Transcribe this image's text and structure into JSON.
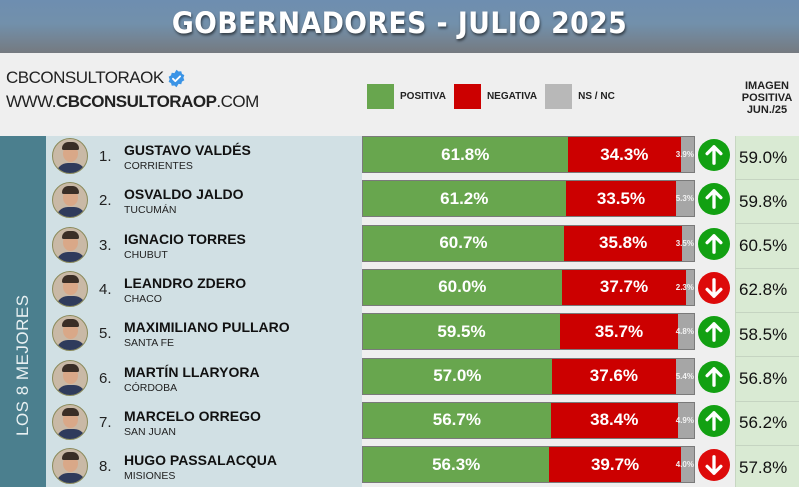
{
  "header": {
    "title": "GOBERNADORES - JULIO 2025"
  },
  "brand": {
    "handle": "CBCONSULTORAOK",
    "verified_icon": "verified-badge-icon",
    "url_prefix": "WWW.",
    "url_bold": "CBCONSULTORAOP",
    "url_suffix": ".COM"
  },
  "legend": {
    "positive": {
      "label": "POSITIVA",
      "color": "#68a64e"
    },
    "negative": {
      "label": "NEGATIVA",
      "color": "#cc0000"
    },
    "nsnc": {
      "label": "NS / NC",
      "color": "#b8b8b8"
    }
  },
  "prev_column": {
    "line1": "IMAGEN",
    "line2": "POSITIVA",
    "line3": "JUN./25"
  },
  "sidebar": {
    "label": "LOS 8 MEJORES"
  },
  "colors": {
    "trend_up": "#12a012",
    "trend_down": "#dd0a0a"
  },
  "chart_data": {
    "type": "bar",
    "title": "GOBERNADORES - JULIO 2025",
    "subtitle": "LOS 8 MEJORES",
    "stacked": true,
    "orientation": "horizontal",
    "categories": [
      "GUSTAVO VALDÉS",
      "OSVALDO JALDO",
      "IGNACIO TORRES",
      "LEANDRO ZDERO",
      "MAXIMILIANO PULLARO",
      "MARTÍN LLARYORA",
      "MARCELO ORREGO",
      "HUGO PASSALACQUA"
    ],
    "series": [
      {
        "name": "POSITIVA",
        "values": [
          61.8,
          61.2,
          60.7,
          60.0,
          59.5,
          57.0,
          56.7,
          56.3
        ]
      },
      {
        "name": "NEGATIVA",
        "values": [
          34.3,
          33.5,
          35.8,
          37.7,
          35.7,
          37.6,
          38.4,
          39.7
        ]
      },
      {
        "name": "NS / NC",
        "values": [
          3.9,
          5.3,
          3.5,
          2.3,
          4.8,
          5.4,
          4.9,
          4.0
        ]
      },
      {
        "name": "IMAGEN POSITIVA JUN./25",
        "values": [
          59.0,
          59.8,
          60.5,
          62.8,
          58.5,
          56.8,
          56.2,
          57.8
        ]
      }
    ],
    "xlabel": "",
    "ylabel": "",
    "xlim": [
      0,
      100
    ],
    "legend_position": "top"
  },
  "rows": [
    {
      "rank": "1.",
      "name": "GUSTAVO VALDÉS",
      "province": "CORRIENTES",
      "pos": "61.8%",
      "neg": "34.3%",
      "ns": "3.9%",
      "pos_w": 61.8,
      "neg_w": 34.3,
      "ns_w": 3.9,
      "trend": "up",
      "prev": "59.0%"
    },
    {
      "rank": "2.",
      "name": "OSVALDO JALDO",
      "province": "TUCUMÁN",
      "pos": "61.2%",
      "neg": "33.5%",
      "ns": "5.3%",
      "pos_w": 61.2,
      "neg_w": 33.5,
      "ns_w": 5.3,
      "trend": "up",
      "prev": "59.8%"
    },
    {
      "rank": "3.",
      "name": "IGNACIO TORRES",
      "province": "CHUBUT",
      "pos": "60.7%",
      "neg": "35.8%",
      "ns": "3.5%",
      "pos_w": 60.7,
      "neg_w": 35.8,
      "ns_w": 3.5,
      "trend": "up",
      "prev": "60.5%"
    },
    {
      "rank": "4.",
      "name": "LEANDRO ZDERO",
      "province": "CHACO",
      "pos": "60.0%",
      "neg": "37.7%",
      "ns": "2.3%",
      "pos_w": 60.0,
      "neg_w": 37.7,
      "ns_w": 2.3,
      "trend": "down",
      "prev": "62.8%"
    },
    {
      "rank": "5.",
      "name": "MAXIMILIANO PULLARO",
      "province": "SANTA FE",
      "pos": "59.5%",
      "neg": "35.7%",
      "ns": "4.8%",
      "pos_w": 59.5,
      "neg_w": 35.7,
      "ns_w": 4.8,
      "trend": "up",
      "prev": "58.5%"
    },
    {
      "rank": "6.",
      "name": "MARTÍN LLARYORA",
      "province": "CÓRDOBA",
      "pos": "57.0%",
      "neg": "37.6%",
      "ns": "5.4%",
      "pos_w": 57.0,
      "neg_w": 37.6,
      "ns_w": 5.4,
      "trend": "up",
      "prev": "56.8%"
    },
    {
      "rank": "7.",
      "name": "MARCELO ORREGO",
      "province": "SAN JUAN",
      "pos": "56.7%",
      "neg": "38.4%",
      "ns": "4.9%",
      "pos_w": 56.7,
      "neg_w": 38.4,
      "ns_w": 4.9,
      "trend": "up",
      "prev": "56.2%"
    },
    {
      "rank": "8.",
      "name": "HUGO PASSALACQUA",
      "province": "MISIONES",
      "pos": "56.3%",
      "neg": "39.7%",
      "ns": "4.0%",
      "pos_w": 56.3,
      "neg_w": 39.7,
      "ns_w": 4.0,
      "trend": "down",
      "prev": "57.8%"
    }
  ]
}
